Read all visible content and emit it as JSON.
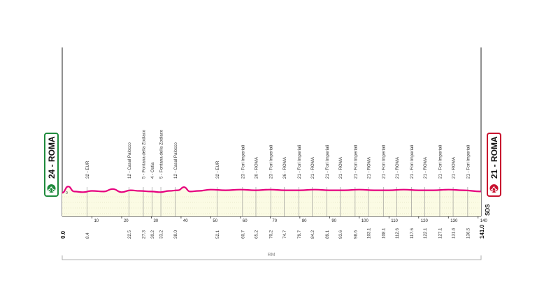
{
  "chart_data": {
    "type": "area",
    "xlim": [
      0,
      141
    ],
    "x_axis_ticks": [
      10,
      20,
      30,
      40,
      50,
      60,
      70,
      80,
      90,
      100,
      110,
      120,
      130,
      140
    ],
    "start_km_label": "0.0",
    "end_km_label": "141.0",
    "start_badge": "24 - ROMA",
    "end_badge": "21 - ROMA",
    "start_altitude_label": "0",
    "end_note": "SDS",
    "region_label": "RM",
    "profile_color": "#e6007e",
    "fill_color": "#fbfbe4",
    "start_badge_color": "#1e8a3c",
    "end_badge_color": "#c8102e",
    "profile_x": [
      0,
      2,
      4,
      7,
      10,
      14,
      17,
      20,
      23,
      26,
      30,
      33,
      36,
      39,
      41,
      43,
      46,
      50,
      55,
      60,
      65,
      70,
      75,
      80,
      85,
      90,
      95,
      100,
      105,
      110,
      115,
      120,
      125,
      130,
      135,
      141
    ],
    "profile_y": [
      22,
      32,
      24,
      23,
      25,
      24,
      28,
      23,
      26,
      25,
      24,
      23,
      25,
      26,
      31,
      24,
      25,
      27,
      26,
      27,
      26,
      27,
      26,
      26,
      27,
      26,
      26,
      27,
      26,
      26,
      27,
      26,
      26,
      27,
      26,
      24
    ],
    "profile_units_note": "",
    "waypoints": [
      {
        "km": "8.4",
        "label": "32 - EUR"
      },
      {
        "km": "22.5",
        "label": "12 - Casal Palocco"
      },
      {
        "km": "27.3",
        "label": "5 - Fontana della Zodiaco"
      },
      {
        "km": "30.2",
        "label": "4 - Ostia"
      },
      {
        "km": "33.2",
        "label": "5 - Fontana della Zodiaco"
      },
      {
        "km": "38.0",
        "label": "12 - Casal Palocco"
      },
      {
        "km": "52.1",
        "label": "32 - EUR"
      },
      {
        "km": "60.7",
        "label": "23 - Fori Imperiali"
      },
      {
        "km": "65.2",
        "label": "26 - ROMA"
      },
      {
        "km": "70.2",
        "label": "23 - Fori Imperiali"
      },
      {
        "km": "74.7",
        "label": "26 - ROMA"
      },
      {
        "km": "79.7",
        "label": "21 - Fori Imperiali"
      },
      {
        "km": "84.2",
        "label": "21 - ROMA"
      },
      {
        "km": "89.1",
        "label": "21 - Fori Imperiali"
      },
      {
        "km": "93.6",
        "label": "21 - ROMA"
      },
      {
        "km": "98.6",
        "label": "21 - Fori Imperiali"
      },
      {
        "km": "103.1",
        "label": "21 - ROMA"
      },
      {
        "km": "108.1",
        "label": "21 - Fori Imperiali"
      },
      {
        "km": "112.6",
        "label": "21 - ROMA"
      },
      {
        "km": "117.6",
        "label": "21 - Fori Imperiali"
      },
      {
        "km": "122.1",
        "label": "21 - ROMA"
      },
      {
        "km": "127.1",
        "label": "21 - Fori Imperiali"
      },
      {
        "km": "131.6",
        "label": "21 - ROMA"
      },
      {
        "km": "136.5",
        "label": "21 - Fori Imperiali"
      }
    ]
  }
}
